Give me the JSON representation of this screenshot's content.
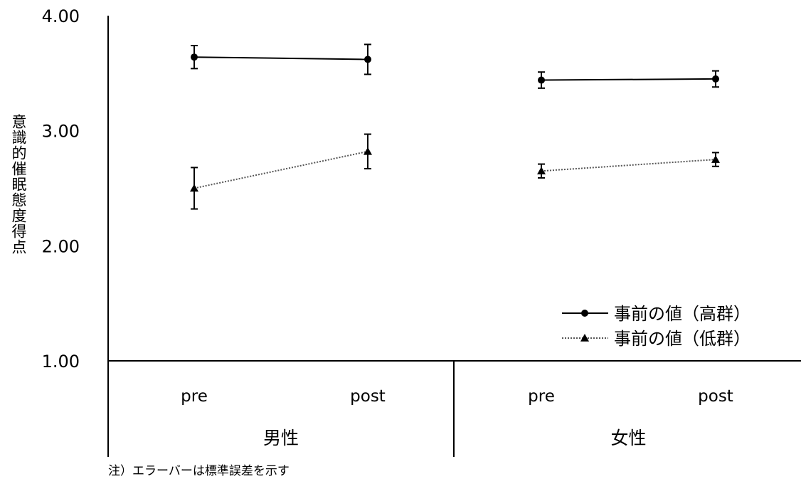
{
  "chart_data": {
    "type": "line",
    "ylabel": "意識的催眠態度得点",
    "ylim": [
      1.0,
      4.0
    ],
    "y_ticks": [
      "1.00",
      "2.00",
      "3.00",
      "4.00"
    ],
    "y_tick_values": [
      1.0,
      2.0,
      3.0,
      4.0
    ],
    "groups": [
      {
        "label": "男性",
        "categories": [
          "pre",
          "post"
        ]
      },
      {
        "label": "女性",
        "categories": [
          "pre",
          "post"
        ]
      }
    ],
    "series": [
      {
        "name": "事前の値（高群）",
        "marker": "circle",
        "line_style": "solid",
        "color": "#000000",
        "groups": [
          {
            "values": [
              3.64,
              3.62
            ],
            "errors": [
              0.1,
              0.13
            ]
          },
          {
            "values": [
              3.44,
              3.45
            ],
            "errors": [
              0.07,
              0.07
            ]
          }
        ]
      },
      {
        "name": "事前の値（低群）",
        "marker": "triangle",
        "line_style": "dotted",
        "color": "#555555",
        "groups": [
          {
            "values": [
              2.5,
              2.82
            ],
            "errors": [
              0.18,
              0.15
            ]
          },
          {
            "values": [
              2.65,
              2.75
            ],
            "errors": [
              0.06,
              0.06
            ]
          }
        ]
      }
    ],
    "legend_position": "lower-right",
    "grid": false,
    "note": "注）エラーバーは標準誤差を示す"
  }
}
